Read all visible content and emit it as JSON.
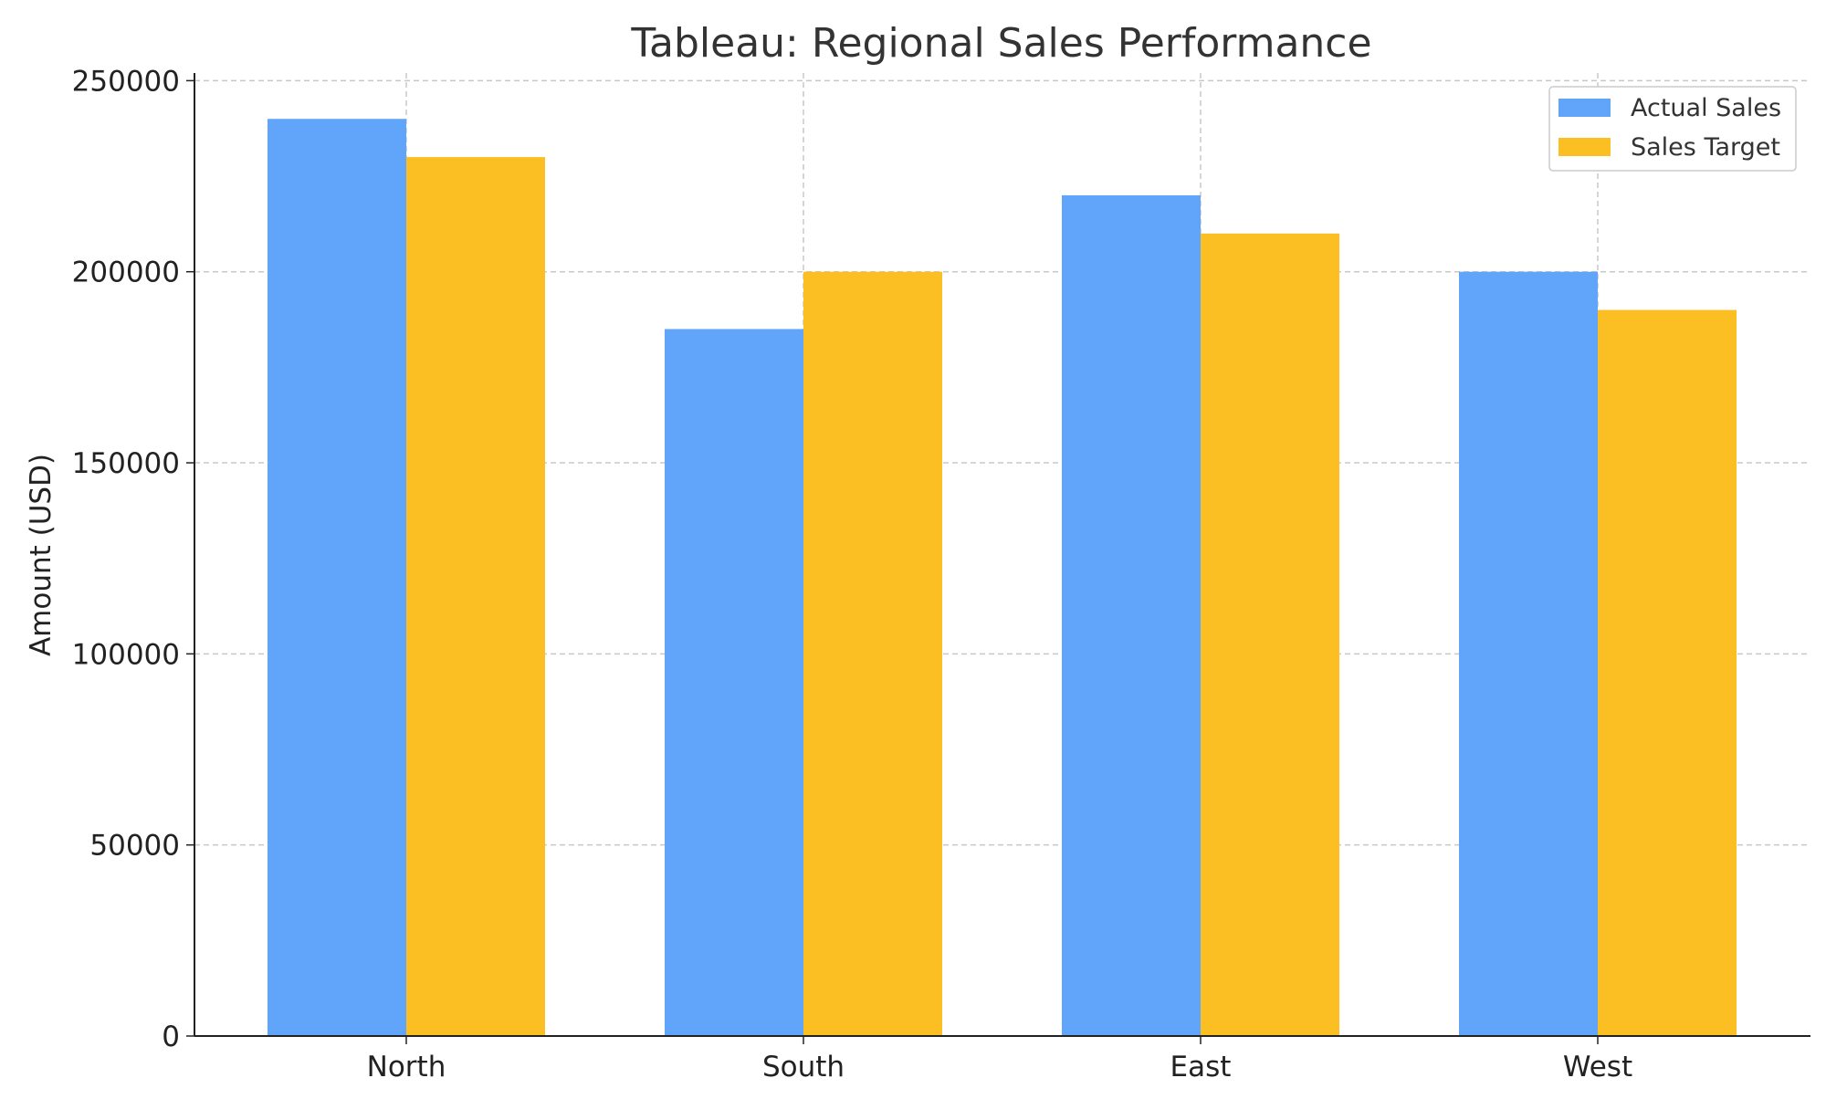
{
  "chart_data": {
    "type": "bar",
    "title": "Tableau: Regional Sales Performance",
    "xlabel": "",
    "ylabel": "Amount (USD)",
    "categories": [
      "North",
      "South",
      "East",
      "West"
    ],
    "series": [
      {
        "name": "Actual Sales",
        "color": "#60a5fa",
        "values": [
          240000,
          185000,
          220000,
          200000
        ]
      },
      {
        "name": "Sales Target",
        "color": "#fbbf24",
        "values": [
          230000,
          200000,
          210000,
          190000
        ]
      }
    ],
    "ylim": [
      0,
      252000
    ],
    "yticks": [
      0,
      50000,
      100000,
      150000,
      200000,
      250000
    ],
    "grid": true,
    "legend_position": "top-right"
  }
}
